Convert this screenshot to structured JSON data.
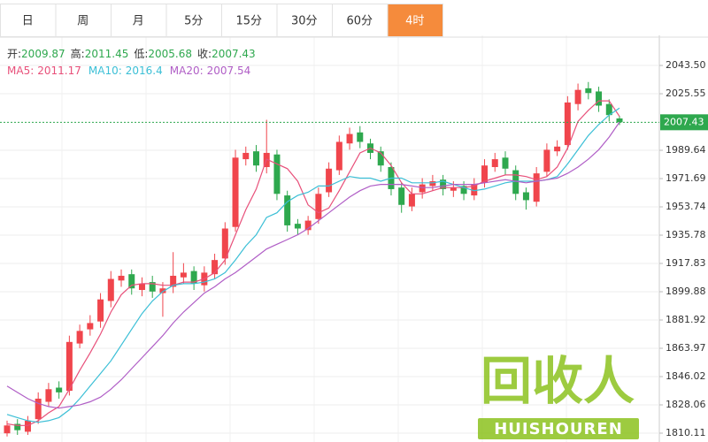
{
  "tabs": [
    "日",
    "周",
    "月",
    "5分",
    "15分",
    "30分",
    "60分",
    "4时"
  ],
  "active_tab": 7,
  "watermark": {
    "title": "回收人",
    "subtitle": "HUISHOUREN"
  },
  "chart_data": {
    "type": "candlestick",
    "ohlc_labels": {
      "open": "开:",
      "high": "高:",
      "low": "低:",
      "close": "收:"
    },
    "up_color": "#f0454c",
    "down_color": "#2ea84e",
    "open": [
      1810,
      1816,
      1811,
      1819,
      1830,
      1839,
      1837,
      1867,
      1876,
      1881,
      1894,
      1907,
      1911,
      1901,
      1906,
      1899,
      1903,
      1909,
      1913,
      1904,
      1911,
      1921,
      1941,
      1984,
      1989,
      1979,
      1987,
      1961,
      1943,
      1939,
      1946,
      1963,
      1977,
      1994,
      2001,
      1994,
      1989,
      1979,
      1966,
      1954,
      1963,
      1967,
      1971,
      1964,
      1967,
      1961,
      1969,
      1979,
      1985,
      1977,
      1963,
      1957,
      1976,
      1989,
      1993,
      2019,
      2029,
      2027,
      2019,
      2009.87
    ],
    "high": [
      1818,
      1819,
      1821,
      1836,
      1842,
      1843,
      1872,
      1879,
      1885,
      1899,
      1913,
      1914,
      1914,
      1909,
      1910,
      1906,
      1925,
      1918,
      1916,
      1916,
      1924,
      1944,
      1990,
      1992,
      1993,
      2009,
      1990,
      1964,
      1946,
      1948,
      1966,
      1982,
      1999,
      2004,
      2005,
      1997,
      1992,
      1982,
      1969,
      1966,
      1972,
      1974,
      1974,
      1970,
      1970,
      1972,
      1984,
      1988,
      1989,
      1980,
      1966,
      1979,
      1994,
      1996,
      2024,
      2032,
      2033,
      2030,
      2022,
      2011.45
    ],
    "low": [
      1808,
      1809,
      1809,
      1816,
      1827,
      1832,
      1834,
      1864,
      1872,
      1877,
      1890,
      1903,
      1898,
      1897,
      1896,
      1884,
      1899,
      1905,
      1901,
      1900,
      1908,
      1917,
      1938,
      1980,
      1976,
      1975,
      1958,
      1938,
      1936,
      1936,
      1943,
      1960,
      1974,
      1990,
      1991,
      1984,
      1976,
      1961,
      1950,
      1951,
      1959,
      1964,
      1961,
      1960,
      1958,
      1958,
      1966,
      1976,
      1974,
      1958,
      1952,
      1954,
      1973,
      1986,
      1990,
      2015,
      2022,
      2014,
      2008,
      2005.68
    ],
    "close": [
      1815,
      1812,
      1818,
      1832,
      1838,
      1836,
      1868,
      1875,
      1880,
      1895,
      1908,
      1910,
      1902,
      1905,
      1900,
      1902,
      1910,
      1912,
      1905,
      1912,
      1920,
      1940,
      1985,
      1988,
      1980,
      1988,
      1962,
      1942,
      1940,
      1945,
      1962,
      1978,
      1995,
      2000,
      1995,
      1988,
      1980,
      1965,
      1955,
      1962,
      1968,
      1970,
      1965,
      1966,
      1962,
      1968,
      1980,
      1984,
      1978,
      1962,
      1958,
      1975,
      1990,
      1992,
      2020,
      2028,
      2026,
      2018,
      2012,
      2007.43
    ],
    "series": [
      {
        "name": "MA5:",
        "color": "#e8507a",
        "values": [
          1816,
          1815,
          1815,
          1818,
          1823,
          1827,
          1838,
          1850,
          1861,
          1873,
          1887,
          1898,
          1904,
          1905,
          1905,
          1904,
          1904,
          1906,
          1906,
          1908,
          1912,
          1920,
          1936,
          1952,
          1965,
          1984,
          1981,
          1978,
          1970,
          1955,
          1950,
          1953,
          1964,
          1976,
          1988,
          1991,
          1988,
          1980,
          1969,
          1962,
          1962,
          1964,
          1966,
          1966,
          1966,
          1967,
          1970,
          1972,
          1974,
          1974,
          1973,
          1971,
          1973,
          1979,
          1991,
          2008,
          2015,
          2021,
          2021,
          2011.17
        ]
      },
      {
        "name": "MA10:",
        "color": "#3bbfd6",
        "values": [
          1822,
          1820,
          1818,
          1817,
          1818,
          1820,
          1825,
          1832,
          1840,
          1848,
          1856,
          1866,
          1876,
          1886,
          1894,
          1900,
          1904,
          1905,
          1905,
          1906,
          1908,
          1912,
          1920,
          1929,
          1936,
          1947,
          1950,
          1957,
          1961,
          1963,
          1967,
          1967,
          1970,
          1973,
          1972,
          1972,
          1970,
          1972,
          1972,
          1969,
          1969,
          1969,
          1970,
          1968,
          1966,
          1964,
          1965,
          1967,
          1969,
          1970,
          1970,
          1970,
          1971,
          1973,
          1981,
          1990,
          1999,
          2006,
          2012,
          2016.4
        ]
      },
      {
        "name": "MA20:",
        "color": "#b05ec6",
        "values": [
          1840,
          1836,
          1832,
          1829,
          1827,
          1826,
          1827,
          1828,
          1830,
          1833,
          1838,
          1844,
          1851,
          1858,
          1865,
          1872,
          1880,
          1887,
          1893,
          1899,
          1903,
          1908,
          1912,
          1917,
          1922,
          1927,
          1930,
          1933,
          1936,
          1940,
          1945,
          1950,
          1955,
          1960,
          1964,
          1967,
          1968,
          1968,
          1968,
          1967,
          1966,
          1966,
          1967,
          1968,
          1968,
          1968,
          1969,
          1970,
          1971,
          1970,
          1969,
          1970,
          1971,
          1972,
          1975,
          1979,
          1984,
          1990,
          1998,
          2007.54
        ]
      }
    ],
    "ylim": [
      1807.3,
      2062.6
    ],
    "yticks": [
      1810.11,
      1828.06,
      1846.02,
      1863.97,
      1881.92,
      1899.88,
      1917.83,
      1935.78,
      1953.74,
      1971.69,
      1989.64,
      2025.55,
      {
        "value": 2043.5,
        "label": "2043.50"
      }
    ],
    "grid": true,
    "price_line_color": "#2ea84e"
  }
}
